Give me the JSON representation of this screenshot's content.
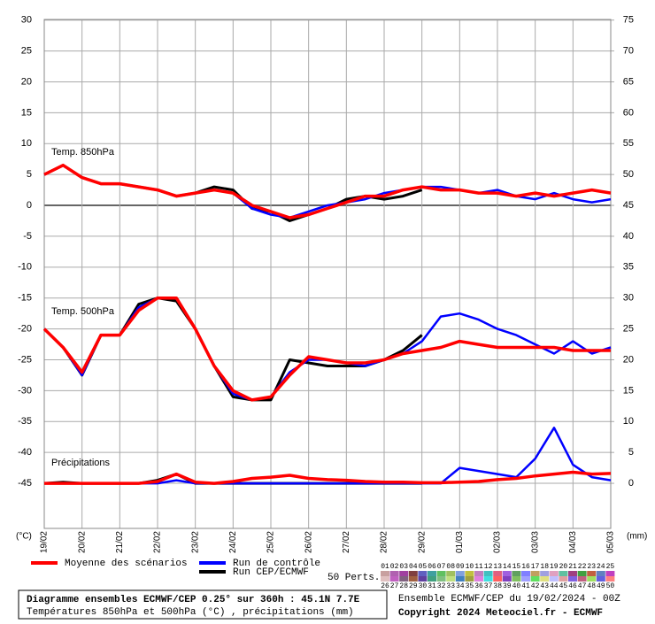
{
  "chart_data": {
    "type": "line",
    "y_unit": "(°C)",
    "y2_unit": "(mm)",
    "panel_labels": [
      "Temp. 850hPa",
      "Temp. 500hPa",
      "Précipitations"
    ],
    "x": [
      0,
      12,
      24,
      36,
      48,
      60,
      72,
      84,
      96,
      108,
      120,
      132,
      144,
      156,
      168,
      180,
      192,
      204,
      216,
      228,
      240,
      252,
      264,
      276,
      288,
      300,
      312,
      324,
      336,
      348,
      360
    ],
    "xlim": [
      0,
      360
    ],
    "xticks": [
      {
        "value": 0,
        "label": "19/02"
      },
      {
        "value": 24,
        "label": "20/02"
      },
      {
        "value": 48,
        "label": "21/02"
      },
      {
        "value": 72,
        "label": "22/02"
      },
      {
        "value": 96,
        "label": "23/02"
      },
      {
        "value": 120,
        "label": "24/02"
      },
      {
        "value": 144,
        "label": "25/02"
      },
      {
        "value": 168,
        "label": "26/02"
      },
      {
        "value": 192,
        "label": "27/02"
      },
      {
        "value": 216,
        "label": "28/02"
      },
      {
        "value": 240,
        "label": "29/02"
      },
      {
        "value": 264,
        "label": "01/03"
      },
      {
        "value": 288,
        "label": "02/03"
      },
      {
        "value": 312,
        "label": "03/03"
      },
      {
        "value": 336,
        "label": "04/03"
      },
      {
        "value": 360,
        "label": "05/03"
      }
    ],
    "ylim": [
      -52.3,
      30.1
    ],
    "yticks": [
      30,
      25,
      20,
      15,
      10,
      5,
      0,
      -5,
      -10,
      -15,
      -20,
      -25,
      -30,
      -35,
      -40,
      -45
    ],
    "y2lim": [
      -7.3,
      75.1
    ],
    "y2ticks": [
      75,
      70,
      65,
      60,
      55,
      50,
      45,
      40,
      35,
      30,
      25,
      20,
      15,
      10,
      5,
      0
    ],
    "grid": true,
    "series": [
      {
        "name": "Moyenne des scénarios",
        "color": "#ff0000",
        "t850": [
          5,
          6.5,
          4.5,
          3.5,
          3.5,
          3,
          2.5,
          1.5,
          2,
          2.5,
          2,
          0,
          -1,
          -2,
          -1.5,
          -0.5,
          0.5,
          1.5,
          1.5,
          2.5,
          3,
          2.5,
          2.5,
          2,
          2,
          1.5,
          2,
          1.5,
          2,
          2.5,
          2
        ],
        "t500": [
          -20,
          -23,
          -27,
          -21,
          -21,
          -17,
          -15,
          -15,
          -20,
          -26,
          -30,
          -31.5,
          -31,
          -27.5,
          -24.5,
          -25,
          -25.5,
          -25.5,
          -25,
          -24,
          -23.5,
          -23,
          -22,
          -22.5,
          -23,
          -23,
          -23,
          -23,
          -23.5,
          -23.5,
          -23.5
        ],
        "precip": [
          0,
          0,
          0,
          0,
          0,
          0,
          0.3,
          1.5,
          0.2,
          0,
          0.3,
          0.8,
          1,
          1.3,
          0.8,
          0.6,
          0.5,
          0.3,
          0.2,
          0.2,
          0.1,
          0.1,
          0.2,
          0.3,
          0.6,
          0.8,
          1.2,
          1.5,
          1.8,
          1.5,
          1.6
        ]
      },
      {
        "name": "Run de contrôle",
        "color": "#0000ff",
        "t850": [
          5,
          6.5,
          4.5,
          3.5,
          3.5,
          3,
          2.5,
          1.5,
          2,
          2.5,
          2,
          -0.5,
          -1.5,
          -2,
          -1,
          0,
          0.5,
          1,
          2,
          2.5,
          3,
          3,
          2.5,
          2,
          2.5,
          1.5,
          1,
          2,
          1,
          0.5,
          1
        ],
        "t500": [
          -20,
          -23,
          -27.5,
          -21,
          -21,
          -16.5,
          -15,
          -15,
          -20,
          -26,
          -30.5,
          -31.5,
          -31,
          -27,
          -25,
          -25,
          -25.5,
          -26,
          -25,
          -24,
          -22,
          -18,
          -17.5,
          -18.5,
          -20,
          -21,
          -22.5,
          -24,
          -22,
          -24,
          -23
        ],
        "precip": [
          0,
          0,
          0,
          0,
          0,
          0,
          0,
          0.5,
          0,
          0,
          0,
          0,
          0,
          0,
          0,
          0,
          0,
          0,
          0,
          0,
          0,
          0,
          2.5,
          2,
          1.5,
          1,
          4,
          9,
          3,
          1,
          0.5
        ]
      },
      {
        "name": "Run CEP/ECMWF",
        "color": "#000000",
        "t850": [
          5,
          6.5,
          4.5,
          3.5,
          3.5,
          3,
          2.5,
          1.5,
          2,
          3,
          2.5,
          -0.5,
          -1,
          -2.5,
          -1.5,
          -0.5,
          1,
          1.5,
          1,
          1.5,
          2.5,
          null,
          null,
          null,
          null,
          null,
          null,
          null,
          null,
          null,
          null
        ],
        "t500": [
          -20,
          -23,
          -27.5,
          -21,
          -21,
          -16,
          -15,
          -15.5,
          -20,
          -26,
          -31,
          -31.5,
          -31.5,
          -25,
          -25.5,
          -26,
          -26,
          -26,
          -25,
          -23.5,
          -21,
          null,
          null,
          null,
          null,
          null,
          null,
          null,
          null,
          null,
          null
        ],
        "precip": [
          0,
          0.2,
          0,
          0,
          0,
          0,
          0.5,
          1.5,
          0,
          0,
          0,
          0,
          0,
          0,
          0,
          0,
          0,
          0,
          0,
          0,
          0,
          null,
          null,
          null,
          null,
          null,
          null,
          null,
          null,
          null,
          null
        ]
      }
    ],
    "members": {
      "label": "50 Perts.",
      "names": [
        "01",
        "02",
        "03",
        "04",
        "05",
        "06",
        "07",
        "08",
        "09",
        "10",
        "11",
        "12",
        "13",
        "14",
        "15",
        "16",
        "17",
        "18",
        "19",
        "20",
        "21",
        "22",
        "23",
        "24",
        "25",
        "26",
        "27",
        "28",
        "29",
        "30",
        "31",
        "32",
        "33",
        "34",
        "35",
        "36",
        "37",
        "38",
        "39",
        "40",
        "41",
        "42",
        "43",
        "44",
        "45",
        "46",
        "47",
        "48",
        "49",
        "50"
      ],
      "colors": [
        "#c8a0a0",
        "#b060b0",
        "#a040a0",
        "#804040",
        "#6060c0",
        "#40a0a0",
        "#60c060",
        "#a0c060",
        "#80a0e0",
        "#c0c040",
        "#c080c0",
        "#40c0c0",
        "#e06080",
        "#a060e0",
        "#60a060",
        "#8080ff",
        "#c0a060",
        "#a0a0e0",
        "#e0a0c0",
        "#60c0a0",
        "#a04080",
        "#40a040",
        "#c06040",
        "#6080c0",
        "#c040c0",
        "#e0c0c0",
        "#c060c0",
        "#806080",
        "#a06040",
        "#6040a0",
        "#40a080",
        "#80c080",
        "#c0e080",
        "#4080c0",
        "#a0a040",
        "#e080e0",
        "#40e0e0",
        "#ff6060",
        "#8040c0",
        "#80c060",
        "#a0a0ff",
        "#60e060",
        "#e0e080",
        "#c0c0ff",
        "#e0a0a0",
        "#8060e0",
        "#c06080",
        "#a0e060",
        "#6060e0",
        "#ff8080"
      ]
    },
    "footer": {
      "title": "Diagramme ensembles ECMWF/CEP 0.25° sur 360h : 45.1N 7.7E",
      "subtitle": "Températures 850hPa et 500hPa (°C) , précipitations (mm)",
      "run": "Ensemble ECMWF/CEP du 19/02/2024 - 00Z",
      "copyright": "Copyright 2024 Meteociel.fr - ECMWF"
    }
  }
}
